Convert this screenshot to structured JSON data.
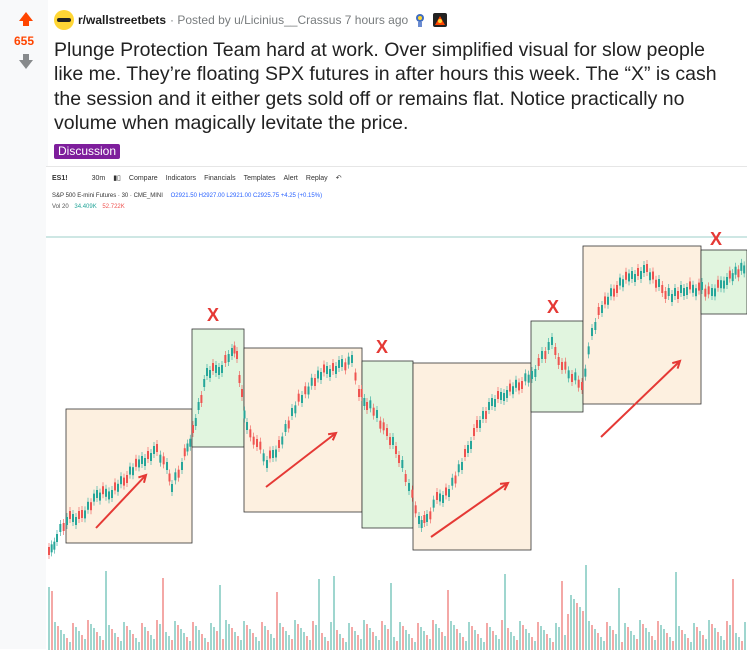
{
  "post": {
    "score": "655",
    "subreddit": "r/wallstreetbets",
    "posted_by": "· Posted by u/Licinius__Crassus 7 hours ago",
    "title": "Plunge Protection Team hard at work. Over simplified visual for slow people like me. They’re floating SPX futures in after hours this week. The “X” is cash the session and it either gets sold off or remains flat. Notice practically no volume when magically levitate the price.",
    "flair": "Discussion",
    "colors": {
      "upvote": "#ff4500",
      "flair_bg": "#7e1e9c",
      "sub_avatar": "#ffd635"
    },
    "icons": [
      "upvote-arrow-icon",
      "downvote-arrow-icon",
      "award-icon"
    ]
  },
  "chart_toolbar": {
    "symbol": "ES1!",
    "interval": "30m",
    "items": [
      "Compare",
      "Indicators",
      "Financials",
      "Templates",
      "Alert",
      "Replay"
    ]
  },
  "chart_legend": {
    "instrument": "S&P 500 E-mini Futures · 30 · CME_MINI",
    "ohlc": "O2921.50 H2927.00 L2921.00 C2925.75 +4.25 (+0.15%)",
    "vol_label": "Vol 20",
    "vol_value1": "34.409K",
    "vol_value2": "52.722K"
  },
  "chart_annotations": {
    "marker_label": "X",
    "colors": {
      "rise_box": "#fdf0e0",
      "cash_box": "#e1f5df",
      "arrow": "#e53935",
      "up_candle": "#26a69a",
      "down_candle": "#ef5350"
    }
  }
}
